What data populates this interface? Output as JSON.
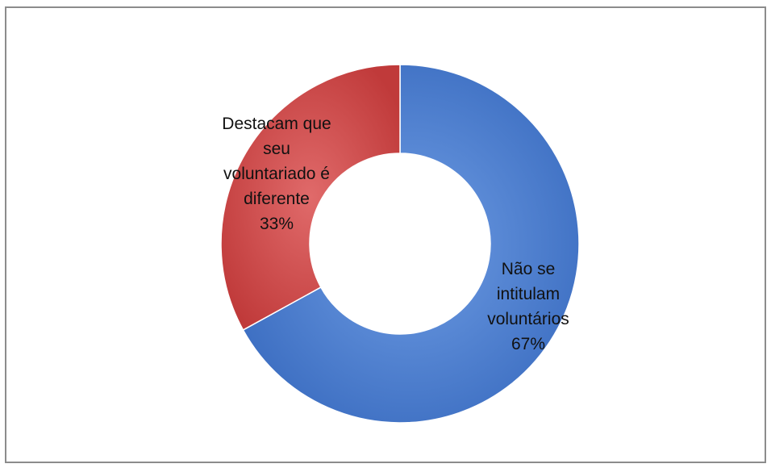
{
  "chart_data": {
    "type": "pie",
    "style": "doughnut",
    "title": "",
    "series": [
      {
        "categories": [
          "Não se intitulam voluntários",
          "Destacam que seu voluntariado é diferente"
        ],
        "values": [
          67,
          33
        ],
        "percent_labels": [
          "67%",
          "33%"
        ],
        "colors": [
          "#4a7fd0",
          "#d04848"
        ]
      }
    ],
    "slices": [
      {
        "label_lines": [
          "Não se",
          "intitulam",
          "voluntários",
          "67%"
        ],
        "value": 67,
        "color": "#4a7fd0"
      },
      {
        "label_lines": [
          "Destacam que",
          "seu",
          "voluntariado é",
          "diferente",
          "33%"
        ],
        "value": 33,
        "color": "#d04848"
      }
    ],
    "legend": "none",
    "start_angle_deg": 0,
    "direction": "clockwise"
  }
}
